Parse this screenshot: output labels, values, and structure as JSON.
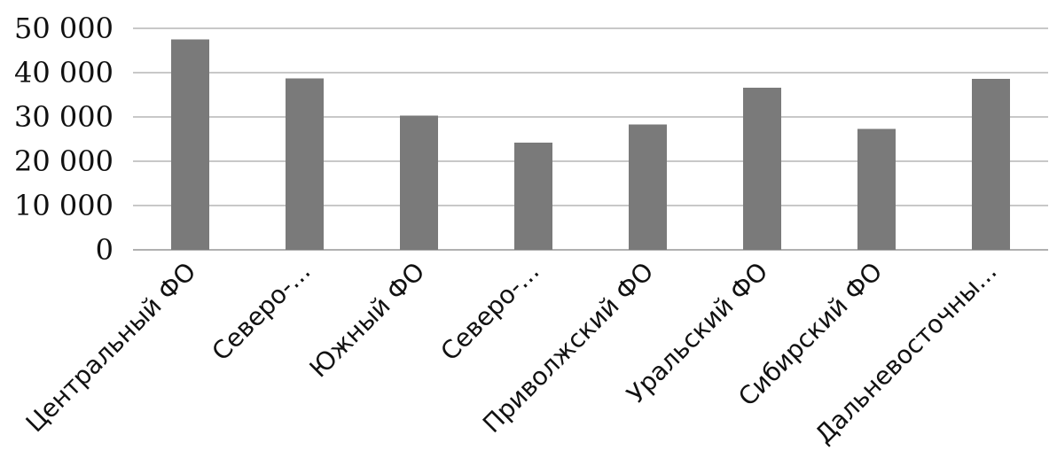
{
  "chart_data": {
    "type": "bar",
    "title": "",
    "xlabel": "",
    "ylabel": "",
    "categories": [
      "Центральный ФО",
      "Северо-...",
      "Южный ФО",
      "Северо-...",
      "Приволжский ФО",
      "Уральский ФО",
      "Сибирский ФО",
      "Дальневосточны..."
    ],
    "values": [
      47500,
      38700,
      30300,
      24200,
      28300,
      36600,
      27300,
      38600
    ],
    "ylim": [
      0,
      50000
    ],
    "yticks": [
      0,
      10000,
      20000,
      30000,
      40000,
      50000
    ],
    "ytick_labels": [
      "0",
      "10 000",
      "20 000",
      "30 000",
      "40 000",
      "50 000"
    ],
    "grid": true,
    "legend": "none",
    "bar_color": "#7a7a7a",
    "grid_color": "#c8c8c8"
  }
}
